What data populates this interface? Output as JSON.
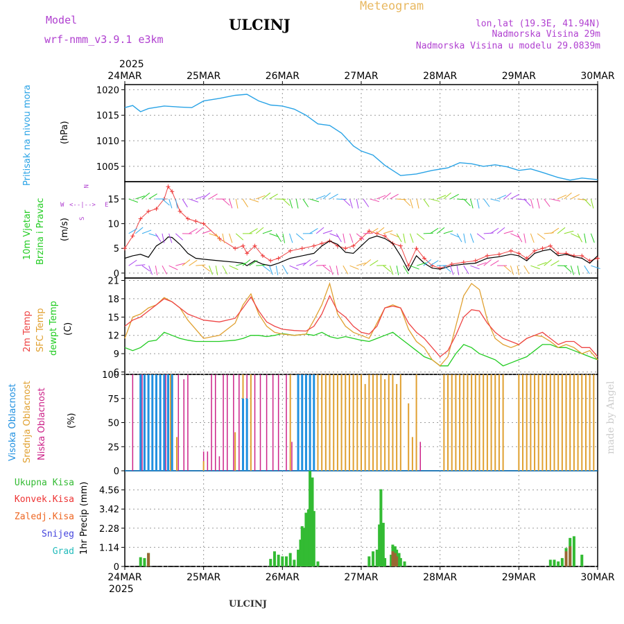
{
  "header": {
    "model_label": "Model",
    "model_name": "wrf-nmm_v3.9.1 e3km",
    "station": "ULCINJ",
    "product": "Meteogram",
    "location": "lon,lat (19.3E, 41.94N)",
    "elevation": "Nadmorska Visina 29m",
    "model_elevation": "Nadmorska Visina u modelu 29.0839m",
    "year_top": "2025",
    "year_bottom": "2025",
    "footer_station": "ULCINJ",
    "credit": "made by Angel"
  },
  "colors": {
    "pressure": "#29a3e6",
    "temp2m": "#ee4444",
    "sfc": "#e0a030",
    "dewpt": "#22cc22",
    "purple": "#b040d0",
    "high": "#2090e0",
    "mid": "#e0a030",
    "low": "#cc2288",
    "rain": "#33bb33",
    "conv": "#ee3333",
    "frz": "#ee6622",
    "snow": "#4444dd",
    "grad": "#22bbbb",
    "bar_brown": "#996633"
  },
  "time_axis": {
    "labels": [
      "24MAR",
      "25MAR",
      "26MAR",
      "27MAR",
      "28MAR",
      "29MAR",
      "30MAR"
    ]
  },
  "panels": {
    "pressure": {
      "label": "Pritisak na nivou mora",
      "unit": "(hPa)"
    },
    "wind": {
      "label1": "10m Vjetar",
      "label2": "Brzina i Pravac",
      "unit": "(m/s)",
      "compass": {
        "n": "N",
        "e": "E",
        "s": "S",
        "w": "W",
        "arrow": "<--|-->"
      }
    },
    "temp": {
      "label1": "2m Temp",
      "label2": "SFC Temp",
      "label3": "dewpt Temp",
      "unit": "(C)"
    },
    "cloud": {
      "label1": "Visoka Oblacnost",
      "label2": "Srednja Oblacnost",
      "label3": "Niska Oblacnost",
      "unit": "(%)"
    },
    "precip": {
      "unit": "1hr Precip (mm)",
      "legend": [
        "Ukupna Kisa",
        "Konvek.Kisa",
        "Zaledj.Kisa",
        "Snijeg",
        "Grad"
      ]
    }
  },
  "chart_data": [
    {
      "type": "line",
      "title": "",
      "ylabel": "Pritisak na nivou mora (hPa)",
      "ylim": [
        1002,
        1021
      ],
      "yticks": [
        1005,
        1010,
        1015,
        1020
      ],
      "x_days": [
        0,
        0.1,
        0.2,
        0.3,
        0.5,
        0.7,
        0.85,
        1.0,
        1.2,
        1.4,
        1.55,
        1.7,
        1.85,
        2.0,
        2.15,
        2.3,
        2.45,
        2.6,
        2.75,
        2.9,
        3.0,
        3.15,
        3.3,
        3.5,
        3.7,
        3.9,
        4.1,
        4.25,
        4.4,
        4.55,
        4.7,
        4.85,
        5.0,
        5.15,
        5.3,
        5.5,
        5.65,
        5.8,
        6.0
      ],
      "series": [
        {
          "values": [
            1016.5,
            1016.9,
            1015.7,
            1016.3,
            1016.8,
            1016.6,
            1016.5,
            1017.8,
            1018.3,
            1018.9,
            1019.1,
            1017.8,
            1017.0,
            1016.8,
            1016.2,
            1015.0,
            1013.3,
            1013.0,
            1011.5,
            1009.0,
            1008.0,
            1007.2,
            1005.2,
            1003.2,
            1003.5,
            1004.2,
            1004.7,
            1005.7,
            1005.5,
            1005.0,
            1005.3,
            1004.9,
            1004.2,
            1004.5,
            1003.8,
            1002.8,
            1002.3,
            1002.7,
            1002.4
          ]
        }
      ]
    },
    {
      "type": "line",
      "title": "",
      "ylabel": "10m Vjetar Brzina i Pravac (m/s)",
      "ylim": [
        -1,
        18.5
      ],
      "yticks": [
        0,
        5,
        10,
        15
      ],
      "x_days": [
        0,
        0.1,
        0.2,
        0.3,
        0.4,
        0.5,
        0.55,
        0.6,
        0.7,
        0.8,
        0.9,
        1.0,
        1.2,
        1.4,
        1.5,
        1.55,
        1.65,
        1.75,
        1.85,
        1.95,
        2.1,
        2.25,
        2.4,
        2.5,
        2.6,
        2.7,
        2.8,
        2.9,
        3.0,
        3.1,
        3.2,
        3.3,
        3.4,
        3.5,
        3.6,
        3.7,
        3.8,
        3.9,
        4.0,
        4.15,
        4.3,
        4.45,
        4.6,
        4.75,
        4.9,
        5.0,
        5.1,
        5.2,
        5.3,
        5.4,
        5.5,
        5.6,
        5.7,
        5.8,
        5.9,
        6.0
      ],
      "series": [
        {
          "name": "speed",
          "values": [
            3.0,
            3.5,
            3.8,
            3.2,
            5.5,
            6.5,
            7.3,
            7.2,
            5.8,
            4.0,
            3.0,
            2.8,
            2.5,
            2.2,
            2.0,
            1.5,
            2.5,
            1.8,
            1.5,
            2.0,
            3.0,
            3.5,
            4.0,
            5.5,
            6.5,
            5.8,
            4.2,
            4.0,
            5.5,
            7.0,
            7.5,
            7.0,
            6.0,
            3.5,
            0.5,
            3.5,
            2.0,
            1.0,
            0.8,
            1.5,
            1.8,
            2.0,
            3.0,
            3.3,
            3.8,
            3.5,
            2.5,
            4.0,
            4.5,
            4.8,
            3.5,
            3.8,
            3.3,
            3.0,
            2.0,
            3.5
          ]
        },
        {
          "name": "gust",
          "values": [
            5.0,
            7.5,
            11.0,
            12.5,
            13.0,
            15.0,
            17.5,
            16.5,
            12.5,
            11.0,
            10.5,
            10.0,
            7.0,
            5.0,
            5.5,
            4.0,
            5.5,
            3.5,
            2.5,
            3.0,
            4.5,
            5.0,
            5.5,
            6.0,
            6.5,
            5.5,
            5.0,
            5.5,
            7.0,
            8.5,
            8.0,
            7.5,
            6.0,
            5.5,
            1.5,
            5.0,
            3.0,
            1.5,
            1.0,
            1.8,
            2.2,
            2.5,
            3.5,
            3.8,
            4.5,
            4.0,
            3.0,
            4.5,
            5.0,
            5.5,
            4.0,
            4.0,
            3.5,
            3.5,
            2.5,
            3.0
          ]
        }
      ]
    },
    {
      "type": "line",
      "title": "",
      "ylabel": "(C)",
      "ylim": [
        5.6,
        21.4
      ],
      "yticks": [
        6,
        9,
        12,
        15,
        18,
        21
      ],
      "x_days": [
        0,
        0.1,
        0.2,
        0.3,
        0.4,
        0.5,
        0.6,
        0.7,
        0.8,
        0.9,
        1.0,
        1.2,
        1.4,
        1.5,
        1.6,
        1.7,
        1.8,
        1.9,
        2.0,
        2.15,
        2.3,
        2.4,
        2.5,
        2.6,
        2.7,
        2.8,
        2.9,
        3.0,
        3.1,
        3.2,
        3.3,
        3.4,
        3.5,
        3.6,
        3.7,
        3.8,
        3.9,
        4.0,
        4.1,
        4.2,
        4.3,
        4.4,
        4.5,
        4.6,
        4.7,
        4.8,
        4.9,
        5.0,
        5.1,
        5.2,
        5.3,
        5.4,
        5.5,
        5.6,
        5.7,
        5.8,
        5.9,
        6.0
      ],
      "series": [
        {
          "name": "2m Temp",
          "values": [
            13.5,
            14.5,
            15.0,
            16.0,
            17.0,
            18.0,
            17.5,
            16.5,
            15.5,
            15.0,
            14.5,
            14.2,
            14.8,
            16.5,
            18.3,
            16.0,
            14.2,
            13.5,
            13.0,
            12.8,
            12.7,
            13.5,
            15.5,
            18.5,
            16.0,
            15.0,
            13.5,
            12.5,
            12.2,
            13.5,
            16.5,
            16.8,
            16.5,
            14.0,
            12.5,
            11.5,
            10.0,
            8.5,
            9.5,
            12.0,
            15.0,
            16.2,
            16.0,
            14.0,
            12.5,
            11.5,
            11.0,
            10.5,
            11.5,
            12.0,
            12.5,
            11.5,
            10.5,
            11.0,
            11.0,
            10.0,
            10.0,
            8.5
          ]
        },
        {
          "name": "SFC Temp",
          "values": [
            11.5,
            15.0,
            15.5,
            16.5,
            17.0,
            18.2,
            17.5,
            16.5,
            14.5,
            13.0,
            11.5,
            12.0,
            14.0,
            17.0,
            18.8,
            15.5,
            13.5,
            12.5,
            12.2,
            12.0,
            12.2,
            14.5,
            17.0,
            20.5,
            15.5,
            13.5,
            12.5,
            12.0,
            11.5,
            14.0,
            16.5,
            17.0,
            16.5,
            13.0,
            11.0,
            10.0,
            8.0,
            7.0,
            8.5,
            13.5,
            18.5,
            20.5,
            19.5,
            14.5,
            11.5,
            10.5,
            10.0,
            10.5,
            11.5,
            12.0,
            11.8,
            11.0,
            10.0,
            10.5,
            10.0,
            9.0,
            9.5,
            8.0
          ]
        },
        {
          "name": "dewpt Temp",
          "values": [
            10.0,
            9.5,
            10.0,
            11.0,
            11.2,
            12.5,
            12.0,
            11.5,
            11.2,
            11.0,
            11.0,
            11.0,
            11.2,
            11.5,
            12.0,
            12.0,
            11.8,
            12.0,
            12.3,
            12.0,
            12.2,
            12.0,
            12.5,
            11.8,
            11.5,
            11.8,
            11.5,
            11.2,
            11.0,
            11.5,
            12.0,
            12.5,
            11.5,
            10.5,
            9.5,
            8.5,
            8.0,
            7.0,
            7.0,
            9.0,
            10.5,
            10.0,
            9.0,
            8.5,
            8.0,
            7.0,
            7.5,
            8.0,
            8.5,
            9.5,
            10.5,
            10.5,
            10.0,
            10.0,
            9.5,
            9.0,
            8.5,
            8.0
          ]
        }
      ]
    },
    {
      "type": "bar",
      "title": "",
      "ylabel": "(%)",
      "ylim": [
        0,
        100
      ],
      "yticks": [
        0,
        25,
        50,
        75,
        100
      ],
      "series": [
        {
          "name": "Niska Oblacnost",
          "x_days": [
            0.1,
            0.22,
            0.35,
            0.45,
            0.52,
            0.6,
            0.68,
            0.75,
            0.8,
            1.0,
            1.05,
            1.1,
            1.15,
            1.2,
            1.25,
            1.3,
            1.38,
            1.45,
            1.55,
            1.65,
            1.72,
            1.8,
            1.88,
            1.95,
            2.05,
            2.12,
            2.2,
            2.3,
            2.35,
            2.4,
            2.45,
            3.7,
            3.75
          ],
          "values": [
            100,
            100,
            100,
            100,
            100,
            65,
            100,
            95,
            100,
            20,
            20,
            100,
            100,
            15,
            100,
            100,
            100,
            100,
            100,
            100,
            100,
            100,
            100,
            100,
            100,
            30,
            100,
            100,
            100,
            100,
            100,
            50,
            30
          ]
        },
        {
          "name": "Srednja Oblacnost",
          "x_days": [
            0.2,
            0.3,
            0.4,
            0.5,
            0.58,
            0.66,
            1.0,
            1.4,
            1.5,
            1.6,
            2.1,
            2.2,
            2.3,
            2.4,
            2.45,
            2.5,
            2.55,
            2.6,
            2.65,
            2.7,
            2.75,
            2.8,
            2.85,
            2.9,
            2.95,
            3.0,
            3.05,
            3.1,
            3.15,
            3.2,
            3.25,
            3.3,
            3.35,
            3.4,
            3.45,
            3.5,
            3.6,
            3.65,
            3.7,
            4.05,
            4.1,
            4.15,
            4.2,
            4.25,
            4.3,
            4.35,
            4.4,
            4.45,
            4.5,
            4.55,
            4.6,
            4.65,
            4.7,
            4.75,
            4.8,
            5.0,
            5.05,
            5.1,
            5.15,
            5.2,
            5.25,
            5.3,
            5.35,
            5.4,
            5.45,
            5.5,
            5.55,
            5.6,
            5.65,
            5.7,
            5.75,
            5.8,
            5.85,
            5.9,
            5.95
          ],
          "values": [
            100,
            100,
            100,
            100,
            100,
            35,
            10,
            40,
            100,
            100,
            100,
            100,
            100,
            100,
            100,
            100,
            100,
            100,
            100,
            100,
            100,
            100,
            100,
            100,
            100,
            100,
            90,
            100,
            100,
            100,
            100,
            95,
            100,
            100,
            90,
            100,
            70,
            35,
            100,
            100,
            100,
            100,
            100,
            100,
            100,
            100,
            100,
            100,
            100,
            100,
            100,
            100,
            100,
            100,
            100,
            100,
            100,
            100,
            100,
            100,
            100,
            100,
            100,
            100,
            100,
            100,
            100,
            100,
            100,
            100,
            100,
            100,
            100,
            100,
            100
          ]
        },
        {
          "name": "Visoka Oblacnost",
          "x_days": [
            0.2,
            0.25,
            0.3,
            0.35,
            0.4,
            0.45,
            0.5,
            0.55,
            0.6,
            1.5,
            1.55,
            2.2,
            2.25,
            2.3,
            2.35,
            2.4
          ],
          "values": [
            100,
            100,
            100,
            100,
            100,
            100,
            100,
            100,
            100,
            75,
            75,
            100,
            100,
            100,
            100,
            100
          ]
        }
      ]
    },
    {
      "type": "bar",
      "title": "",
      "ylabel": "1hr Precip (mm)",
      "ylim": [
        0,
        5.7
      ],
      "yticks": [
        0,
        1.14,
        2.28,
        3.42,
        4.56
      ],
      "series": [
        {
          "name": "Ukupna Kisa",
          "x_days": [
            0.2,
            0.25,
            0.3,
            1.85,
            1.9,
            1.95,
            2.0,
            2.05,
            2.1,
            2.15,
            2.2,
            2.23,
            2.25,
            2.28,
            2.3,
            2.33,
            2.35,
            2.38,
            2.4,
            2.45,
            3.1,
            3.15,
            3.2,
            3.23,
            3.25,
            3.28,
            3.3,
            3.38,
            3.4,
            3.43,
            3.45,
            3.48,
            3.5,
            3.55,
            5.4,
            5.45,
            5.5,
            5.55,
            5.6,
            5.65,
            5.7,
            5.8
          ],
          "values": [
            0.55,
            0.5,
            0.8,
            0.45,
            0.9,
            0.7,
            0.6,
            0.6,
            0.8,
            0.4,
            1.0,
            1.6,
            2.4,
            2.3,
            3.2,
            3.4,
            5.7,
            5.3,
            3.3,
            0.3,
            0.6,
            0.9,
            1.0,
            2.5,
            4.6,
            2.6,
            0.5,
            0.7,
            1.3,
            1.2,
            1.0,
            0.8,
            0.5,
            0.3,
            0.4,
            0.4,
            0.3,
            0.5,
            1.1,
            1.7,
            1.8,
            0.7
          ]
        },
        {
          "name": "Konvek.Kisa",
          "x_days": [
            0.3,
            3.4,
            3.43,
            3.45,
            5.6,
            5.65
          ],
          "values": [
            0.8,
            0.9,
            0.8,
            0.6,
            0.9,
            1.2
          ]
        }
      ]
    }
  ]
}
